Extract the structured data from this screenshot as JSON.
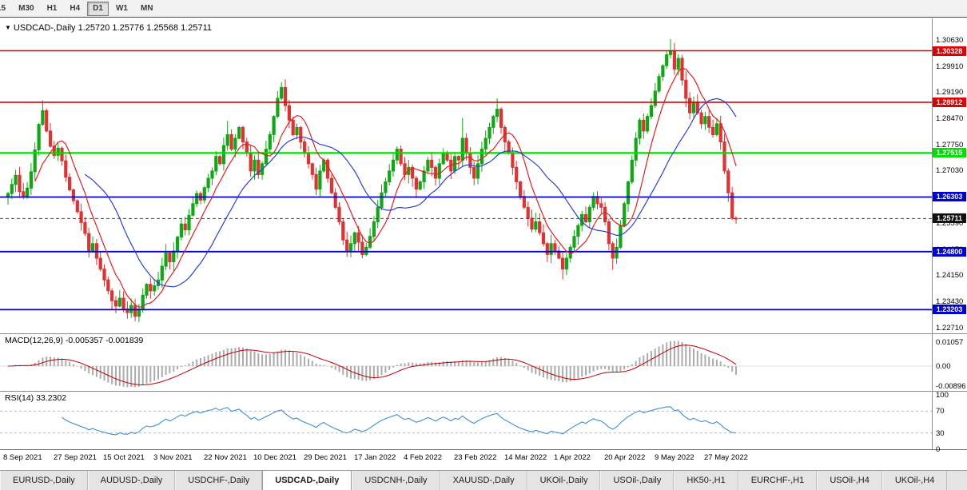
{
  "toolbar": {
    "periods": [
      "15",
      "M30",
      "H1",
      "H4",
      "D1",
      "W1",
      "MN"
    ],
    "active": "D1"
  },
  "chart": {
    "marker": "▼",
    "symbol_title": "USDCAD-,Daily",
    "ohlc_text": "1.25720 1.25776 1.25568 1.25711"
  },
  "chart_data": {
    "type": "candlestick",
    "symbol": "USDCAD",
    "timeframe": "Daily",
    "x_labels": [
      "8 Sep 2021",
      "27 Sep 2021",
      "15 Oct 2021",
      "3 Nov 2021",
      "22 Nov 2021",
      "10 Dec 2021",
      "29 Dec 2021",
      "17 Jan 2022",
      "4 Feb 2022",
      "23 Feb 2022",
      "14 Mar 2022",
      "1 Apr 2022",
      "20 Apr 2022",
      "9 May 2022",
      "27 May 2022"
    ],
    "y_ticks": [
      "1.30630",
      "1.29910",
      "1.29190",
      "1.28470",
      "1.27750",
      "1.27030",
      "1.26310",
      "1.25590",
      "1.24870",
      "1.24150",
      "1.23430",
      "1.22710"
    ],
    "candles": {
      "first_open": 1.263,
      "closes": [
        1.264,
        1.2665,
        1.269,
        1.2645,
        1.263,
        1.2655,
        1.27,
        1.276,
        1.283,
        1.2868,
        1.2812,
        1.277,
        1.2745,
        1.2765,
        1.273,
        1.2685,
        1.265,
        1.262,
        1.259,
        1.256,
        1.253,
        1.2482,
        1.2502,
        1.2462,
        1.2432,
        1.2402,
        1.2372,
        1.2345,
        1.233,
        1.2352,
        1.2322,
        1.2312,
        1.2332,
        1.2302,
        1.2322,
        1.236,
        1.239,
        1.2372,
        1.2386,
        1.2402,
        1.244,
        1.2476,
        1.2452,
        1.2482,
        1.252,
        1.2556,
        1.254,
        1.258,
        1.2612,
        1.264,
        1.2622,
        1.2656,
        1.2682,
        1.2702,
        1.2742,
        1.2722,
        1.2772,
        1.2802,
        1.2762,
        1.2792,
        1.2822,
        1.2782,
        1.2752,
        1.2702,
        1.2732,
        1.2692,
        1.2722,
        1.2762,
        1.2802,
        1.2852,
        1.2902,
        1.2932,
        1.2882,
        1.2842,
        1.2802,
        1.2822,
        1.2782,
        1.2752,
        1.2722,
        1.2692,
        1.2652,
        1.2702,
        1.2732,
        1.2682,
        1.2642,
        1.2602,
        1.2562,
        1.2512,
        1.2482,
        1.2502,
        1.2532,
        1.2506,
        1.2472,
        1.2492,
        1.2522,
        1.2562,
        1.2602,
        1.2642,
        1.2672,
        1.2702,
        1.2732,
        1.2762,
        1.2722,
        1.2692,
        1.2712,
        1.2682,
        1.2652,
        1.2672,
        1.2702,
        1.2732,
        1.2712,
        1.2682,
        1.2722,
        1.2752,
        1.2732,
        1.2702,
        1.2742,
        1.2732,
        1.2792,
        1.2752,
        1.2712,
        1.2682,
        1.2722,
        1.2762,
        1.2792,
        1.2822,
        1.2852,
        1.2872,
        1.2822,
        1.2782,
        1.2752,
        1.2712,
        1.2672,
        1.2632,
        1.2602,
        1.2572,
        1.2542,
        1.2562,
        1.2532,
        1.2502,
        1.2472,
        1.2502,
        1.2482,
        1.2462,
        1.2432,
        1.2462,
        1.2492,
        1.2522,
        1.2552,
        1.2582,
        1.2562,
        1.2602,
        1.2632,
        1.2612,
        1.2602,
        1.2562,
        1.2502,
        1.2462,
        1.2492,
        1.2552,
        1.2612,
        1.2672,
        1.2732,
        1.2792,
        1.2842,
        1.2812,
        1.2852,
        1.2882,
        1.2922,
        1.2962,
        1.2992,
        1.3022,
        1.3032,
        1.2982,
        1.3012,
        1.2952,
        1.2902,
        1.2862,
        1.2892,
        1.2862,
        1.2832,
        1.2852,
        1.2822,
        1.2802,
        1.2832,
        1.2782,
        1.2702,
        1.2642,
        1.2572,
        1.25711
      ],
      "overrides": {
        "9": {
          "h": 1.2896
        },
        "33": {
          "l": 1.2288
        },
        "57": {
          "h": 1.284
        },
        "118": {
          "h": 1.2848
        },
        "127": {
          "h": 1.2902
        },
        "144": {
          "l": 1.2403
        },
        "157": {
          "l": 1.243
        },
        "172": {
          "h": 1.3065
        },
        "189": {
          "o": 1.2572,
          "h": 1.25776,
          "l": 1.25568,
          "c": 1.25711
        }
      }
    },
    "levels": [
      {
        "price": 1.30328,
        "label": "1.30328",
        "color": "#dd0000",
        "width": 1.6
      },
      {
        "price": 1.28912,
        "label": "1.28912",
        "color": "#dd0000",
        "width": 1.6
      },
      {
        "price": 1.27515,
        "label": "1.27515",
        "color": "#00dd00",
        "width": 2.2
      },
      {
        "price": 1.26303,
        "label": "1.26303",
        "color": "#0000d2",
        "width": 1.8
      },
      {
        "price": 1.248,
        "label": "1.24800",
        "color": "#0000d2",
        "width": 1.8
      },
      {
        "price": 1.23203,
        "label": "1.23203",
        "color": "#0000d2",
        "width": 1.8
      }
    ],
    "current_price": {
      "price": 1.25711,
      "label": "1.25711",
      "color": "#111111"
    },
    "moving_averages": [
      {
        "period": 8,
        "color": "#e02020"
      },
      {
        "period": 21,
        "color": "#2b3fd6"
      }
    ],
    "colors": {
      "up": "#0fa815",
      "down": "#e03232",
      "macd_histogram": "#ababab",
      "macd_signal": "#c00000",
      "rsi_line": "#3b8fd4"
    },
    "macd": {
      "label": "MACD(12,26,9) -0.005357 -0.001839",
      "fast": 12,
      "slow": 26,
      "signal": 9,
      "scale": [
        {
          "label": "0.01057",
          "value": 0.01057
        },
        {
          "label": "0.00",
          "value": 0
        },
        {
          "label": "-0.00896",
          "value": -0.00896
        }
      ]
    },
    "rsi": {
      "label": "RSI(14) 33.2302",
      "period": 14,
      "levels": [
        70,
        30
      ],
      "scale": [
        {
          "label": "100",
          "value": 100
        },
        {
          "label": "70",
          "value": 70
        },
        {
          "label": "30",
          "value": 30
        },
        {
          "label": "0",
          "value": 0
        }
      ]
    }
  },
  "bottom_tabs": {
    "items": [
      {
        "label": "EURUSD-,Daily",
        "active": false
      },
      {
        "label": "AUDUSD-,Daily",
        "active": false
      },
      {
        "label": "USDCHF-,Daily",
        "active": false
      },
      {
        "label": "USDCAD-,Daily",
        "active": true
      },
      {
        "label": "USDCNH-,Daily",
        "active": false
      },
      {
        "label": "XAUUSD-,Daily",
        "active": false
      },
      {
        "label": "UKOil-,Daily",
        "active": false
      },
      {
        "label": "USOil-,Daily",
        "active": false
      },
      {
        "label": "HK50-,H1",
        "active": false
      },
      {
        "label": "EURCHF-,H1",
        "active": false
      },
      {
        "label": "USOil-,H4",
        "active": false
      },
      {
        "label": "UKOil-,H4",
        "active": false
      }
    ]
  }
}
